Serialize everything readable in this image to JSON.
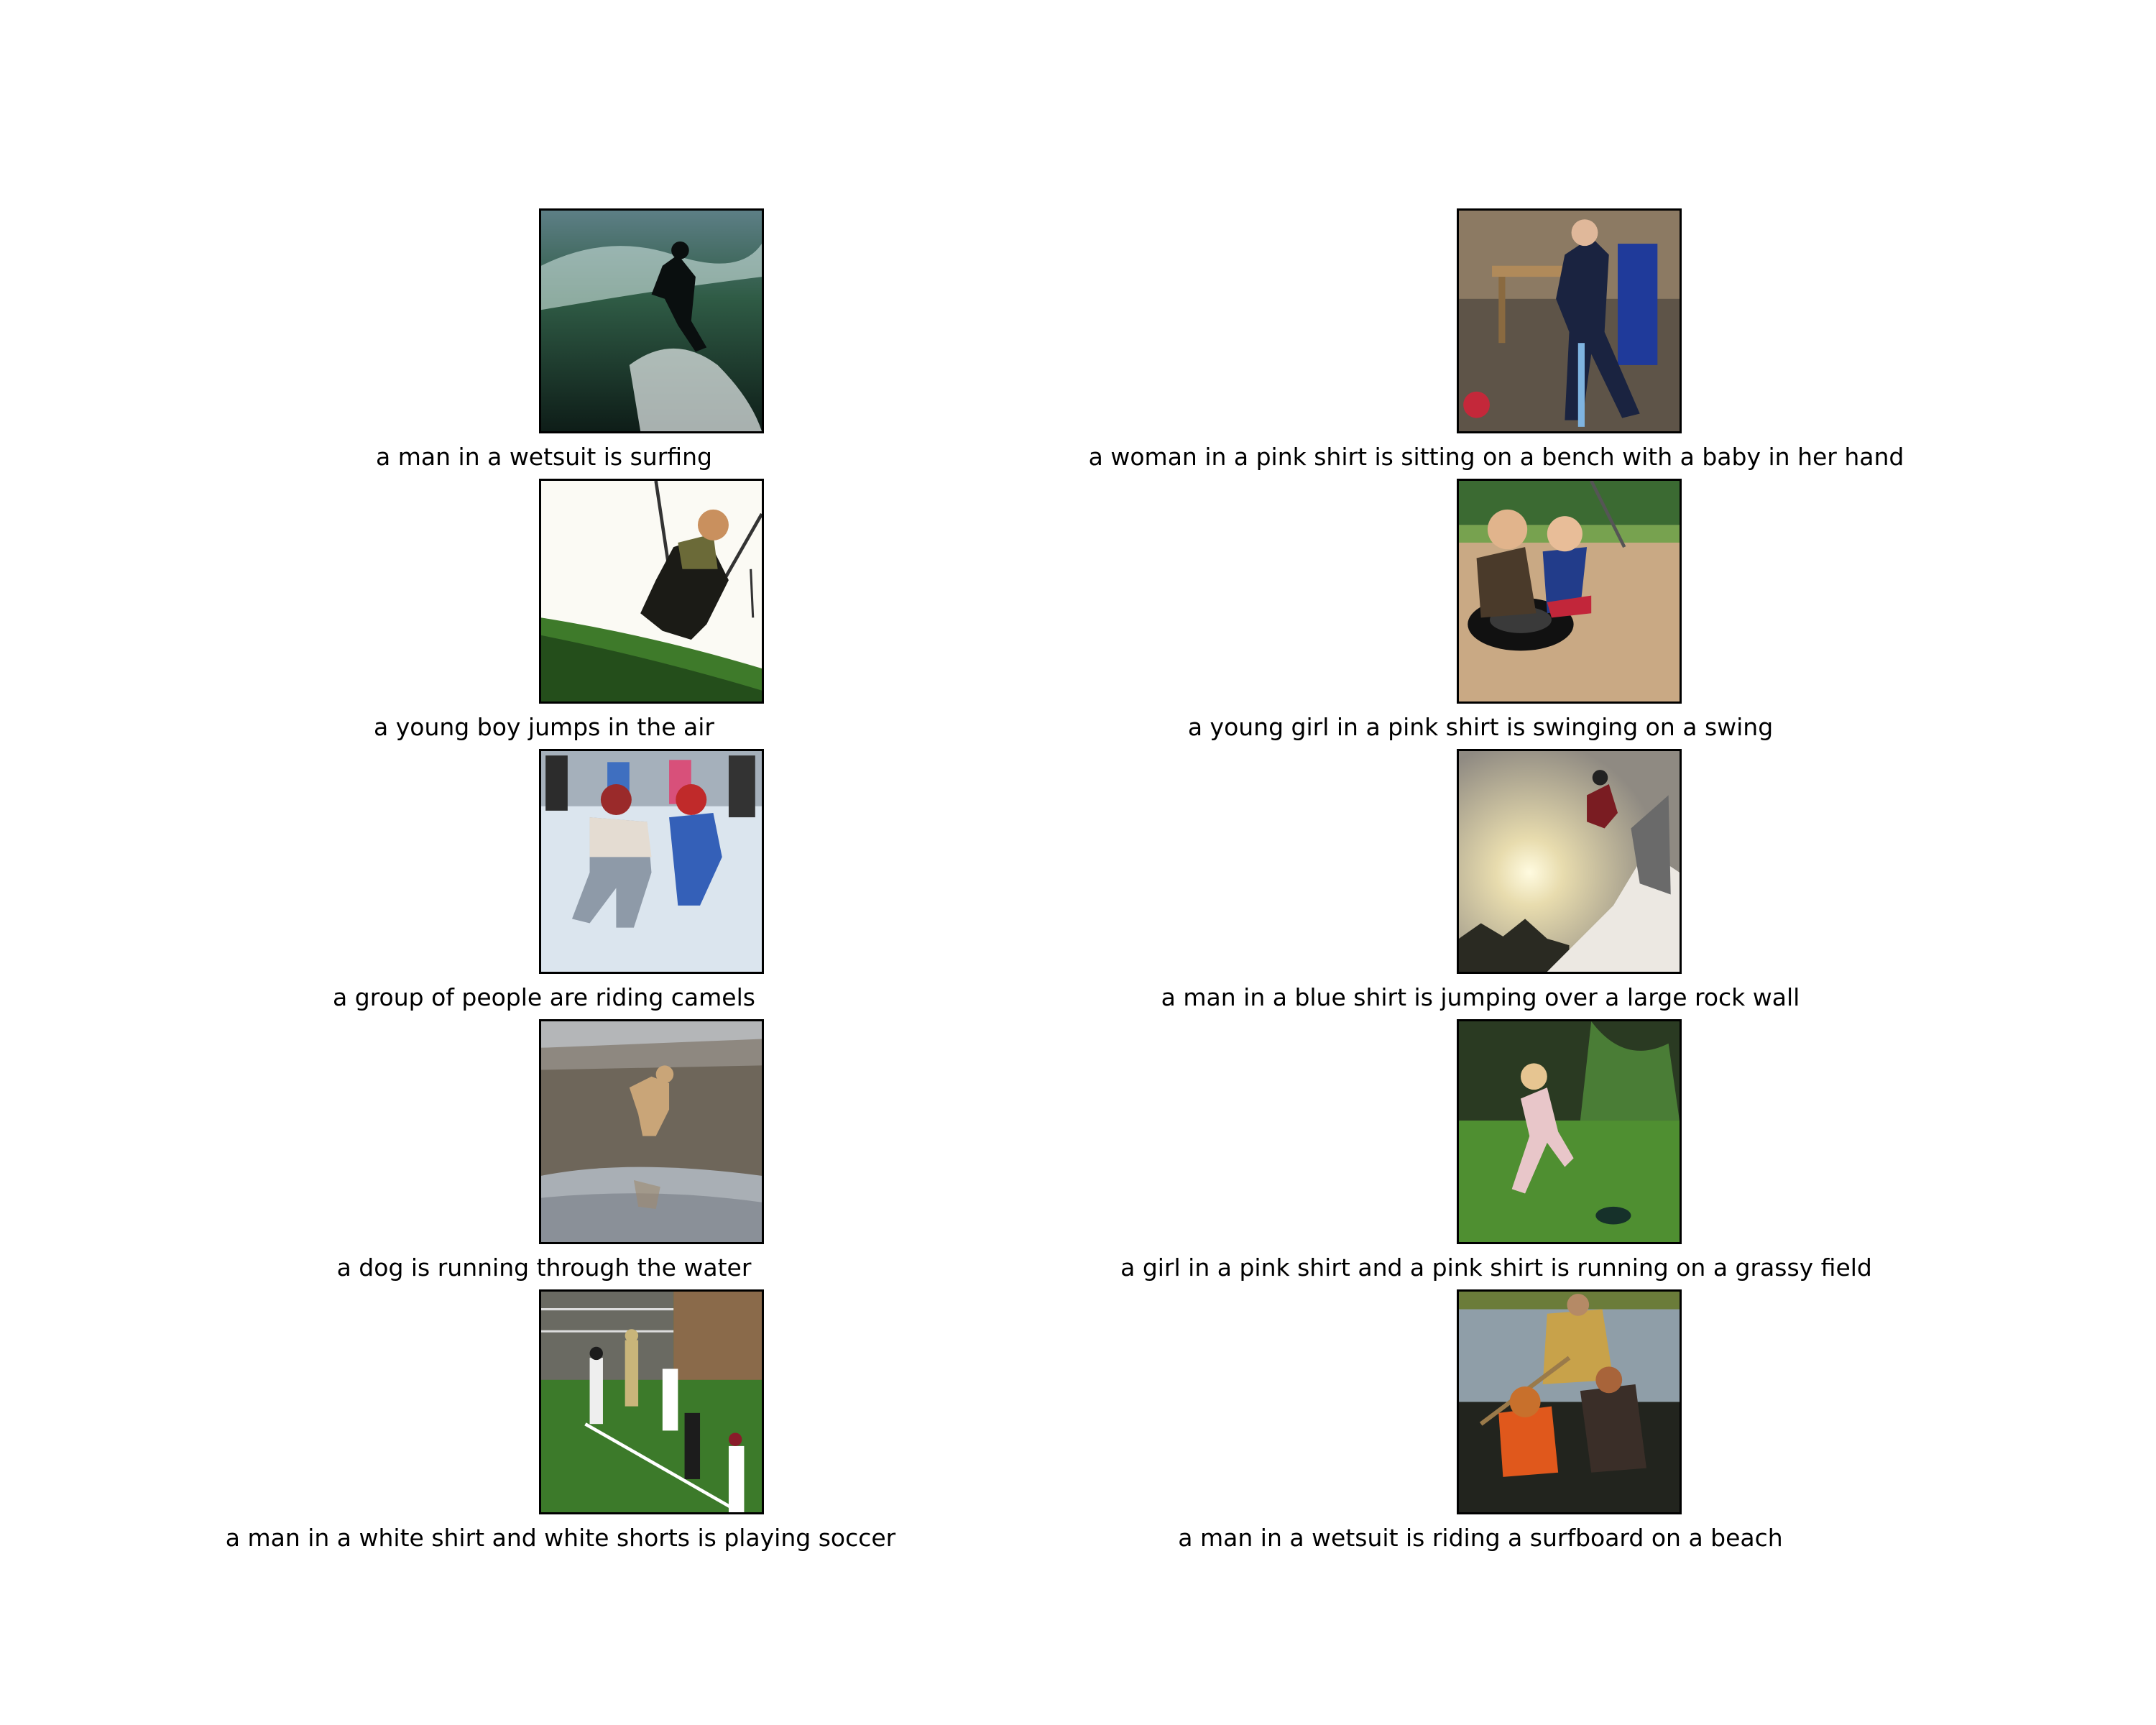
{
  "figure": {
    "items": [
      {
        "caption": "a man in a wetsuit is surfing",
        "scene": "surfer-on-wave"
      },
      {
        "caption": "a woman in a pink shirt is sitting on a bench with a baby in her hand",
        "scene": "child-indoors-with-stick"
      },
      {
        "caption": "a young boy jumps in the air",
        "scene": "boy-on-swing"
      },
      {
        "caption": "a young girl in a pink shirt is swinging on a swing",
        "scene": "kids-on-tire-swing"
      },
      {
        "caption": "a group of people are riding camels",
        "scene": "kids-ice-skating"
      },
      {
        "caption": "a man in a blue shirt is jumping over a large rock wall",
        "scene": "snowboarder-sunset-jump"
      },
      {
        "caption": "a dog is running through the water",
        "scene": "dog-on-wet-sand"
      },
      {
        "caption": "a girl in a pink shirt and a pink shirt is running on a grassy field",
        "scene": "girl-running-on-grass"
      },
      {
        "caption": "a man in a white shirt and white shorts is playing soccer",
        "scene": "football-game"
      },
      {
        "caption": "a man in a wetsuit is riding a surfboard on a beach",
        "scene": "family-in-boat"
      }
    ]
  }
}
